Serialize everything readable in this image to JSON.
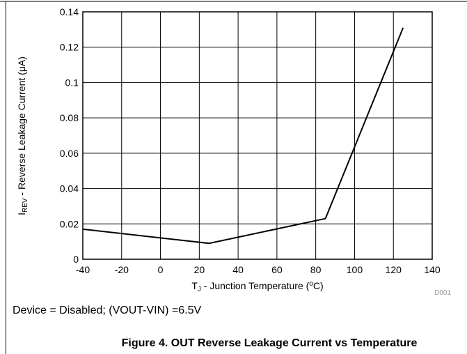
{
  "chart_data": {
    "type": "line",
    "x": [
      -40,
      25,
      85,
      125
    ],
    "values": [
      0.017,
      0.009,
      0.023,
      0.131
    ],
    "color": "#000000",
    "xlim": [
      -40,
      140
    ],
    "xticks": [
      -40,
      -20,
      0,
      20,
      40,
      60,
      80,
      100,
      120,
      140
    ],
    "ylim": [
      0,
      0.14
    ],
    "yticks": [
      0,
      0.02,
      0.04,
      0.06,
      0.08,
      0.1,
      0.12,
      0.14
    ],
    "grid": true,
    "xlabel": {
      "main": "T",
      "sub": "J",
      "rest": " - Junction Temperature (",
      "sup": "o",
      "end": "C)"
    },
    "ylabel": {
      "main": "I",
      "sub": "REV",
      "rest": " - Reverse Leakage Current (μA)"
    },
    "code": "D001",
    "note": "Device = Disabled; (VOUT-VIN) =6.5V",
    "caption": "Figure 4. OUT Reverse Leakage Current vs Temperature"
  }
}
